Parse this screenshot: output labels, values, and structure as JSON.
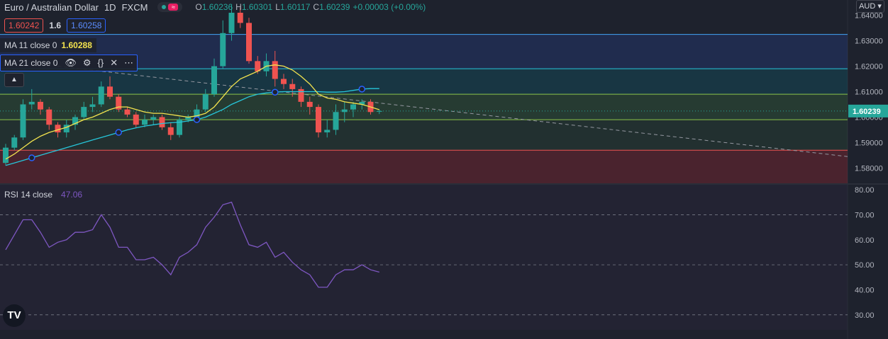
{
  "header": {
    "symbol_name": "Euro / Australian Dollar",
    "timeframe": "1D",
    "exchange": "FXCM",
    "ohlc": [
      {
        "label": "O",
        "value": "1.60236"
      },
      {
        "label": "H",
        "value": "1.60301"
      },
      {
        "label": "L",
        "value": "1.60117"
      },
      {
        "label": "C",
        "value": "1.60239"
      }
    ],
    "change": "+0.00003 (+0.00%)"
  },
  "quote": {
    "sell": "1.60242",
    "spread": "1.6",
    "buy": "1.60258"
  },
  "indicators": {
    "ma11": {
      "label": "MA 11 close 0",
      "value": "1.60288"
    },
    "ma21": {
      "label": "MA 21 close 0"
    },
    "rsi": {
      "label": "RSI 14 close",
      "value": "47.06"
    }
  },
  "axis": {
    "currency": "AUD",
    "current_price_label": "1.60239",
    "logo": "TV"
  },
  "colors": {
    "background": "#1e222d",
    "up": "#26a69a",
    "down": "#ef5350",
    "ma11": "#f3e34e",
    "ma21": "#26c6da",
    "rsi": "#7e57c2"
  },
  "chart_data": [
    {
      "type": "candlestick",
      "ylim": [
        1.574,
        1.646
      ],
      "y_ticks": [
        "1.64000",
        "1.63000",
        "1.62000",
        "1.61000",
        "1.60000",
        "1.59000",
        "1.58000"
      ],
      "y_tick_values": [
        1.64,
        1.63,
        1.62,
        1.61,
        1.6,
        1.59,
        1.58
      ],
      "candles": [
        [
          1.582,
          1.588,
          1.581,
          1.5895
        ],
        [
          1.588,
          1.592,
          1.587,
          1.593
        ],
        [
          1.592,
          1.605,
          1.591,
          1.607
        ],
        [
          1.605,
          1.606,
          1.603,
          1.611
        ],
        [
          1.606,
          1.603,
          1.601,
          1.607
        ],
        [
          1.603,
          1.597,
          1.595,
          1.604
        ],
        [
          1.597,
          1.594,
          1.592,
          1.598
        ],
        [
          1.594,
          1.597,
          1.592,
          1.599
        ],
        [
          1.597,
          1.6,
          1.595,
          1.601
        ],
        [
          1.6,
          1.604,
          1.599,
          1.606
        ],
        [
          1.604,
          1.605,
          1.602,
          1.608
        ],
        [
          1.605,
          1.612,
          1.604,
          1.614
        ],
        [
          1.612,
          1.608,
          1.607,
          1.616
        ],
        [
          1.608,
          1.603,
          1.602,
          1.609
        ],
        [
          1.603,
          1.601,
          1.6,
          1.604
        ],
        [
          1.601,
          1.597,
          1.596,
          1.602
        ],
        [
          1.597,
          1.599,
          1.596,
          1.601
        ],
        [
          1.599,
          1.6,
          1.597,
          1.601
        ],
        [
          1.6,
          1.596,
          1.595,
          1.601
        ],
        [
          1.596,
          1.593,
          1.591,
          1.598
        ],
        [
          1.593,
          1.599,
          1.592,
          1.6
        ],
        [
          1.599,
          1.6,
          1.598,
          1.601
        ],
        [
          1.6,
          1.603,
          1.599,
          1.605
        ],
        [
          1.603,
          1.609,
          1.602,
          1.611
        ],
        [
          1.609,
          1.62,
          1.608,
          1.623
        ],
        [
          1.62,
          1.633,
          1.619,
          1.638
        ],
        [
          1.633,
          1.641,
          1.63,
          1.644
        ],
        [
          1.641,
          1.637,
          1.635,
          1.643
        ],
        [
          1.637,
          1.622,
          1.621,
          1.639
        ],
        [
          1.622,
          1.618,
          1.617,
          1.624
        ],
        [
          1.618,
          1.622,
          1.616,
          1.625
        ],
        [
          1.622,
          1.615,
          1.612,
          1.626
        ],
        [
          1.615,
          1.613,
          1.611,
          1.617
        ],
        [
          1.613,
          1.611,
          1.608,
          1.615
        ],
        [
          1.611,
          1.606,
          1.604,
          1.612
        ],
        [
          1.606,
          1.604,
          1.601,
          1.608
        ],
        [
          1.604,
          1.594,
          1.592,
          1.605
        ],
        [
          1.594,
          1.595,
          1.592,
          1.599
        ],
        [
          1.595,
          1.602,
          1.593,
          1.605
        ],
        [
          1.602,
          1.603,
          1.598,
          1.606
        ],
        [
          1.603,
          1.605,
          1.6,
          1.606
        ],
        [
          1.605,
          1.606,
          1.603,
          1.607
        ],
        [
          1.606,
          1.602,
          1.601,
          1.607
        ],
        [
          1.6024,
          1.6024,
          1.6012,
          1.603
        ]
      ],
      "ma11": [
        1.5835,
        1.5855,
        1.588,
        1.5905,
        1.5925,
        1.594,
        1.595,
        1.596,
        1.5975,
        1.599,
        1.6,
        1.6015,
        1.603,
        1.604,
        1.604,
        1.603,
        1.602,
        1.6015,
        1.6015,
        1.601,
        1.6005,
        1.6,
        1.6005,
        1.6015,
        1.604,
        1.608,
        1.612,
        1.615,
        1.6165,
        1.618,
        1.62,
        1.6205,
        1.62,
        1.6185,
        1.616,
        1.613,
        1.609,
        1.6075,
        1.607,
        1.606,
        1.6055,
        1.605,
        1.604,
        1.6029
      ],
      "ma21": [
        1.581,
        1.582,
        1.583,
        1.584,
        1.585,
        1.586,
        1.587,
        1.588,
        1.589,
        1.59,
        1.591,
        1.592,
        1.593,
        1.594,
        1.595,
        1.5958,
        1.5965,
        1.597,
        1.5975,
        1.5978,
        1.598,
        1.5985,
        1.599,
        1.6,
        1.6015,
        1.603,
        1.605,
        1.6065,
        1.608,
        1.609,
        1.6095,
        1.6098,
        1.61,
        1.61,
        1.61,
        1.61,
        1.61,
        1.6098,
        1.6098,
        1.61,
        1.6105,
        1.611,
        1.6112,
        1.6112
      ],
      "levels": [
        1.6325,
        1.619,
        1.609,
        1.599,
        1.587
      ],
      "current_price": 1.60239
    },
    {
      "type": "line",
      "name": "RSI 14 close",
      "ylim": [
        24,
        82
      ],
      "y_ticks": [
        "80.00",
        "70.00",
        "60.00",
        "50.00",
        "40.00",
        "30.00"
      ],
      "y_tick_values": [
        80,
        70,
        60,
        50,
        40,
        30
      ],
      "bands": [
        70,
        50,
        30
      ],
      "values": [
        56,
        62,
        68,
        68,
        63,
        57,
        59,
        60,
        63,
        63,
        64,
        70,
        65,
        57,
        57,
        52,
        52,
        53,
        50,
        46,
        53,
        55,
        58,
        65,
        69,
        74,
        75,
        66,
        58,
        57,
        59,
        53,
        55,
        51,
        48,
        46,
        41,
        41,
        46,
        48,
        48,
        50,
        48,
        47.06
      ]
    }
  ]
}
